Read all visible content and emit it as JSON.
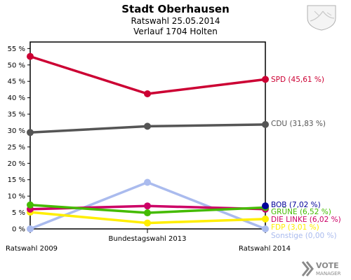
{
  "header": {
    "title": "Stadt Oberhausen",
    "subtitle1": "Ratswahl 25.05.2014",
    "subtitle2": "Verlauf 1704 Holten"
  },
  "logo": {
    "line1": "VOTE",
    "line2": "MANAGER"
  },
  "chart_data": {
    "type": "line",
    "title": "Stadt Oberhausen",
    "subtitle": "Ratswahl 25.05.2014 – Verlauf 1704 Holten",
    "x": [
      "Ratswahl 2009",
      "Bundestagswahl 2013",
      "Ratswahl 2014"
    ],
    "ylim": [
      0,
      57
    ],
    "yticks": [
      0,
      5,
      10,
      15,
      20,
      25,
      30,
      35,
      40,
      45,
      50,
      55
    ],
    "ytick_labels": [
      "0 %",
      "5 %",
      "10 %",
      "15 %",
      "20 %",
      "25 %",
      "30 %",
      "35 %",
      "40 %",
      "45 %",
      "50 %",
      "55 %"
    ],
    "grid": false,
    "legend": "end-of-line labels, right",
    "series": [
      {
        "name": "SPD",
        "label": "SPD (45,61 %)",
        "color": "#cc0033",
        "values": [
          52.6,
          41.2,
          45.61
        ]
      },
      {
        "name": "CDU",
        "label": "CDU (31,83 %)",
        "color": "#555555",
        "values": [
          29.4,
          31.3,
          31.83
        ]
      },
      {
        "name": "Sonstige",
        "label": "Sonstige (0,00 %)",
        "color": "#aabbee",
        "values": [
          0.0,
          14.2,
          0.0
        ]
      },
      {
        "name": "FDP",
        "label": "FDP (3,01 %)",
        "color": "#ffee00",
        "values": [
          5.1,
          1.8,
          3.01
        ]
      },
      {
        "name": "DIE LINKE",
        "label": "DIE LINKE (6,02 %)",
        "color": "#cc0066",
        "values": [
          6.0,
          7.0,
          6.02
        ]
      },
      {
        "name": "GRÜNE",
        "label": "GRÜNE (6,52 %)",
        "color": "#44bb00",
        "values": [
          7.3,
          4.9,
          6.52
        ]
      },
      {
        "name": "BOB",
        "label": "BOB (7,02 %)",
        "color": "#000099",
        "values": [
          null,
          null,
          7.02
        ]
      }
    ]
  }
}
